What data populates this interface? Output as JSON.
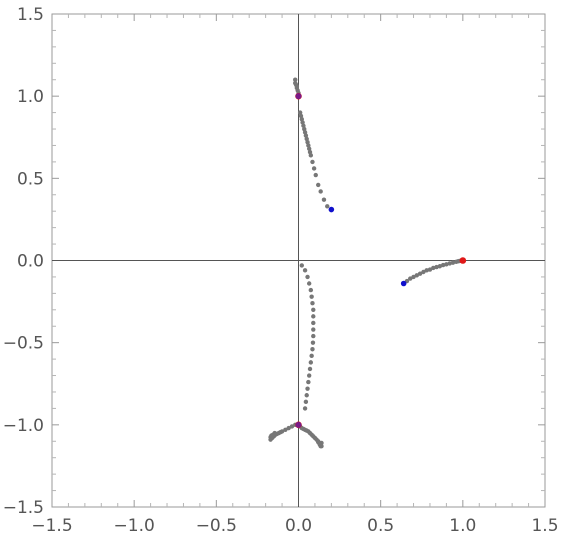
{
  "chart_data": {
    "type": "scatter",
    "title": "",
    "xlabel": "",
    "ylabel": "",
    "xlim": [
      -1.5,
      1.5
    ],
    "ylim": [
      -1.5,
      1.5
    ],
    "grid": false,
    "axes_through_origin": true,
    "x_ticks": [
      {
        "value": -1.5,
        "label": "−1.5"
      },
      {
        "value": -1.0,
        "label": "−1.0"
      },
      {
        "value": -0.5,
        "label": "−0.5"
      },
      {
        "value": 0.0,
        "label": "0.0"
      },
      {
        "value": 0.5,
        "label": "0.5"
      },
      {
        "value": 1.0,
        "label": "1.0"
      },
      {
        "value": 1.5,
        "label": "1.5"
      }
    ],
    "y_ticks": [
      {
        "value": -1.5,
        "label": "−1.5"
      },
      {
        "value": -1.0,
        "label": "−1.0"
      },
      {
        "value": -0.5,
        "label": "−0.5"
      },
      {
        "value": 0.0,
        "label": "0.0"
      },
      {
        "value": 0.5,
        "label": "0.5"
      },
      {
        "value": 1.0,
        "label": "1.0"
      },
      {
        "value": 1.5,
        "label": "1.5"
      }
    ],
    "colors": {
      "trajectory": "#777777",
      "start": "#1010cc",
      "target": "#e01818",
      "overlap": "#7a1a88"
    },
    "series": [
      {
        "role": "trajectory",
        "x": [
          -0.02,
          -0.02,
          -0.015,
          -0.01,
          -0.01,
          -0.005,
          0.0,
          0.01,
          0.015,
          0.02,
          0.025,
          0.03,
          0.035,
          0.04,
          0.045,
          0.05,
          0.055,
          0.06,
          0.065,
          0.07,
          0.075,
          0.085,
          0.095,
          0.105,
          0.12,
          0.135,
          0.155,
          0.175
        ],
        "y": [
          1.1,
          1.08,
          1.07,
          1.06,
          1.05,
          1.035,
          1.02,
          0.9,
          0.88,
          0.86,
          0.84,
          0.82,
          0.8,
          0.78,
          0.76,
          0.74,
          0.72,
          0.7,
          0.68,
          0.66,
          0.64,
          0.6,
          0.56,
          0.52,
          0.46,
          0.42,
          0.37,
          0.33
        ]
      },
      {
        "role": "trajectory",
        "x": [
          0.02,
          0.04,
          0.055,
          0.065,
          0.075,
          0.08,
          0.085,
          0.09,
          0.09,
          0.09,
          0.09,
          0.09,
          0.088,
          0.085,
          0.08,
          0.075,
          0.07,
          0.065,
          0.06,
          0.055,
          0.05,
          0.045,
          0.04
        ],
        "y": [
          -0.03,
          -0.06,
          -0.1,
          -0.14,
          -0.18,
          -0.22,
          -0.26,
          -0.3,
          -0.34,
          -0.38,
          -0.42,
          -0.46,
          -0.5,
          -0.54,
          -0.58,
          -0.62,
          -0.66,
          -0.7,
          -0.74,
          -0.78,
          -0.82,
          -0.86,
          -0.9
        ]
      },
      {
        "role": "trajectory",
        "x": [
          0.66,
          0.68,
          0.7,
          0.72,
          0.74,
          0.76,
          0.78,
          0.8,
          0.82,
          0.84,
          0.86,
          0.88,
          0.9,
          0.92,
          0.94,
          0.96,
          0.97,
          0.98,
          0.99
        ],
        "y": [
          -0.125,
          -0.11,
          -0.1,
          -0.09,
          -0.08,
          -0.07,
          -0.06,
          -0.055,
          -0.045,
          -0.04,
          -0.035,
          -0.028,
          -0.023,
          -0.018,
          -0.013,
          -0.008,
          -0.005,
          -0.003,
          -0.001
        ]
      },
      {
        "role": "trajectory",
        "x": [
          -0.17,
          -0.16,
          -0.15,
          -0.14,
          -0.13,
          -0.12,
          -0.11,
          -0.1,
          -0.08,
          -0.06,
          -0.04,
          -0.02,
          -0.17,
          -0.165,
          -0.155,
          -0.145
        ],
        "y": [
          -1.09,
          -1.08,
          -1.07,
          -1.06,
          -1.055,
          -1.05,
          -1.045,
          -1.04,
          -1.03,
          -1.02,
          -1.01,
          -1.0,
          -1.075,
          -1.065,
          -1.06,
          -1.05
        ]
      },
      {
        "role": "trajectory",
        "x": [
          0.01,
          0.02,
          0.03,
          0.04,
          0.05,
          0.06,
          0.07,
          0.08,
          0.09,
          0.1,
          0.11,
          0.12,
          0.125,
          0.13,
          0.135,
          0.14,
          0.14,
          0.13,
          0.12
        ],
        "y": [
          -1.01,
          -1.02,
          -1.025,
          -1.03,
          -1.035,
          -1.04,
          -1.05,
          -1.06,
          -1.07,
          -1.08,
          -1.09,
          -1.1,
          -1.11,
          -1.12,
          -1.13,
          -1.13,
          -1.11,
          -1.12,
          -1.105
        ]
      },
      {
        "role": "start",
        "x": [
          0.2,
          0.64
        ],
        "y": [
          0.31,
          -0.14
        ]
      },
      {
        "role": "target",
        "x": [
          1.0,
          0.0,
          0.0
        ],
        "y": [
          0.0,
          1.0,
          -1.0
        ]
      },
      {
        "role": "overlap",
        "x": [
          0.0,
          0.0
        ],
        "y": [
          1.0,
          -1.0
        ]
      }
    ]
  }
}
